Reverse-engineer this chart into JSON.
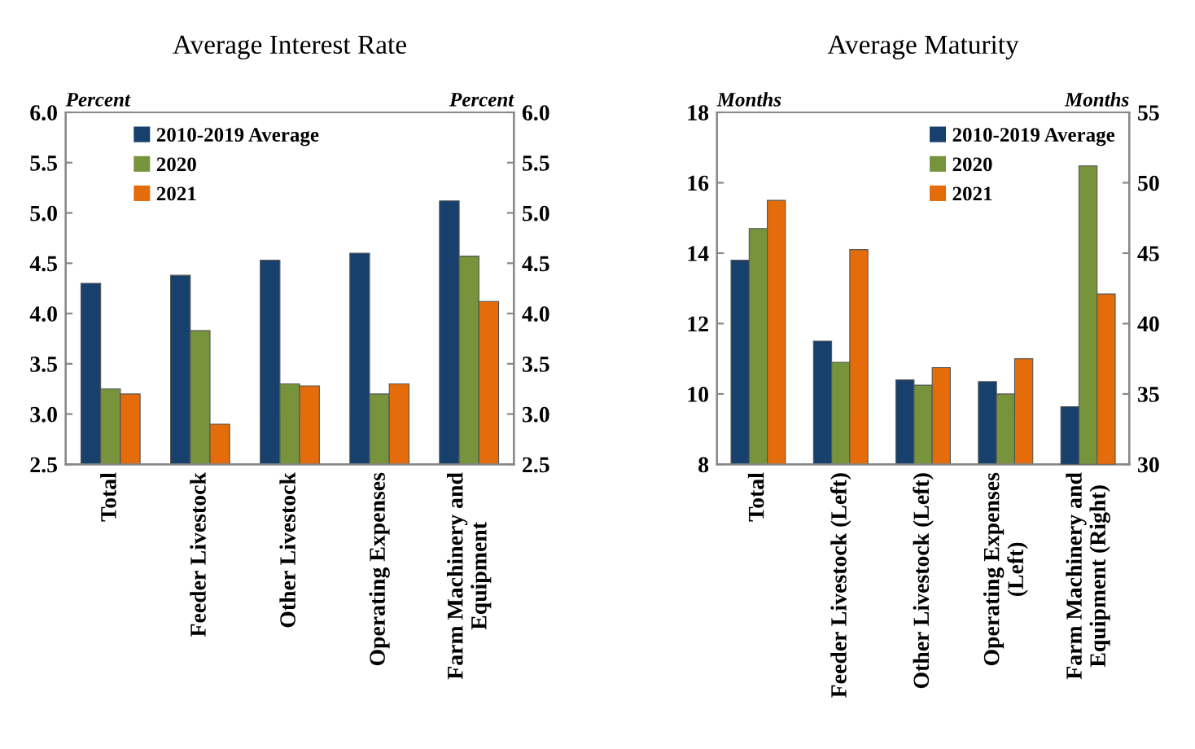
{
  "chart_data": [
    {
      "type": "bar",
      "title": "Average Interest Rate",
      "ylabel": "Percent",
      "y2label": "Percent",
      "categories": [
        "Total",
        "Feeder Livestock",
        "Other Livestock",
        "Operating Expenses",
        "Farm Machinery and\nEquipment"
      ],
      "series": [
        {
          "name": "2010-2019 Average",
          "color": "#17406d",
          "values": [
            4.3,
            4.38,
            4.53,
            4.6,
            5.12
          ]
        },
        {
          "name": "2020",
          "color": "#77933c",
          "values": [
            3.25,
            3.83,
            3.3,
            3.2,
            4.57
          ]
        },
        {
          "name": "2021",
          "color": "#e46c0a",
          "values": [
            3.2,
            2.9,
            3.28,
            3.3,
            4.12
          ]
        }
      ],
      "ylim": [
        2.5,
        6.0
      ],
      "yticks": [
        {
          "value": 2.5,
          "label": "2.5"
        },
        {
          "value": 3.0,
          "label": "3.0"
        },
        {
          "value": 3.5,
          "label": "3.5"
        },
        {
          "value": 4.0,
          "label": "4.0"
        },
        {
          "value": 4.5,
          "label": "4.5"
        },
        {
          "value": 5.0,
          "label": "5.0"
        },
        {
          "value": 5.5,
          "label": "5.5"
        },
        {
          "value": 6.0,
          "label": "6.0"
        }
      ],
      "y2lim": [
        2.5,
        6.0
      ],
      "y2ticks": [
        {
          "value": 2.5,
          "label": "2.5"
        },
        {
          "value": 3.0,
          "label": "3.0"
        },
        {
          "value": 3.5,
          "label": "3.5"
        },
        {
          "value": 4.0,
          "label": "4.0"
        },
        {
          "value": 4.5,
          "label": "4.5"
        },
        {
          "value": 5.0,
          "label": "5.0"
        },
        {
          "value": 5.5,
          "label": "5.5"
        },
        {
          "value": 6.0,
          "label": "6.0"
        }
      ],
      "grid": false,
      "legend": "top left"
    },
    {
      "type": "bar",
      "title": "Average Maturity",
      "ylabel": "Months",
      "y2label": "Months",
      "categories": [
        "Total",
        "Feeder Livestock (Left)",
        "Other Livestock (Left)",
        "Operating Expenses\n(Left)",
        "Farm Machinery and\nEquipment (Right)"
      ],
      "series": [
        {
          "name": "2010-2019 Average",
          "color": "#17406d",
          "values": [
            13.8,
            11.5,
            10.4,
            10.35,
            null
          ]
        },
        {
          "name": "2020",
          "color": "#77933c",
          "values": [
            14.7,
            10.9,
            10.25,
            10.0,
            null
          ]
        },
        {
          "name": "2021",
          "color": "#e46c0a",
          "values": [
            15.5,
            14.1,
            10.75,
            11.0,
            null
          ]
        },
        {
          "color": "#17406d",
          "axis": "y2",
          "values": [
            null,
            null,
            null,
            null,
            34.1
          ]
        },
        {
          "color": "#77933c",
          "axis": "y2",
          "values": [
            null,
            null,
            null,
            null,
            51.2
          ]
        },
        {
          "color": "#e46c0a",
          "axis": "y2",
          "values": [
            null,
            null,
            null,
            null,
            42.1
          ]
        }
      ],
      "ylim": [
        8,
        18
      ],
      "yticks": [
        8,
        10,
        12,
        14,
        16,
        18
      ],
      "y2lim": [
        30,
        55
      ],
      "y2ticks": [
        30,
        35,
        40,
        45,
        50,
        55
      ],
      "grid": false,
      "legend": "top right"
    }
  ]
}
